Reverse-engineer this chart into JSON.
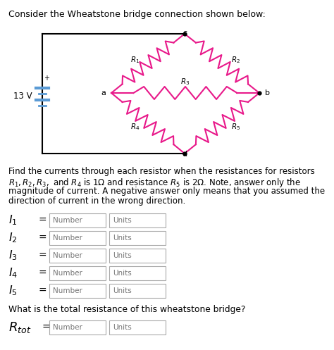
{
  "title": "Consider the Wheatstone bridge connection shown below:",
  "background_color": "#ffffff",
  "text_color": "#000000",
  "figsize": [
    4.74,
    4.97
  ],
  "dpi": 100,
  "problem_text_line1": "Find the currents through each resistor when the resistances for resistors",
  "problem_text_line2": "$R_1, R_2, R_3,$ and $R_4$ is 1Ω and resistance $R_5$ is 2Ω. Note, answer only the",
  "problem_text_line3": "magnitude of current. A negative answer only means that you assumed the",
  "problem_text_line4": "direction of current in the wrong direction.",
  "question_text": "What is the total resistance of this wheatstone bridge?",
  "resistor_color": "#e8198a",
  "wire_color": "#000000",
  "battery_color": "#5b9bd5",
  "voltage": "13 V"
}
